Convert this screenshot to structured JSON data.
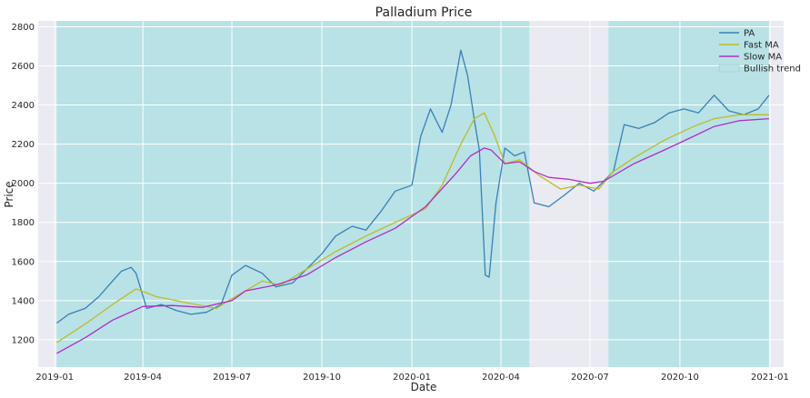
{
  "chart_data": {
    "type": "line",
    "title": "Palladium Price",
    "xlabel": "Date",
    "ylabel": "Price",
    "xlim": [
      "2018-12-15",
      "2021-01-15"
    ],
    "ylim": [
      1060,
      2830
    ],
    "x_ticks": [
      "2019-01-01",
      "2019-04-01",
      "2019-07-01",
      "2019-10-01",
      "2020-01-01",
      "2020-04-01",
      "2020-07-01",
      "2020-10-01",
      "2021-01-01"
    ],
    "x_tick_labels": [
      "2019-01",
      "2019-04",
      "2019-07",
      "2019-10",
      "2020-01",
      "2020-04",
      "2020-07",
      "2020-10",
      "2021-01"
    ],
    "y_ticks": [
      1200,
      1400,
      1600,
      1800,
      2000,
      2200,
      2400,
      2600,
      2800
    ],
    "y_tick_labels": [
      "1200",
      "1400",
      "1600",
      "1800",
      "2000",
      "2200",
      "2400",
      "2600",
      "2800"
    ],
    "grid": true,
    "legend_position": "top-right",
    "legend": [
      "PA",
      "Fast MA",
      "Slow MA",
      "Bullish trend"
    ],
    "colors": {
      "plot_bg": "#eaeaf2",
      "grid": "#ffffff",
      "pa": "#3a7fb6",
      "fast_ma": "#bcbd22",
      "slow_ma": "#b22cc9",
      "bullish": "#b8e2e6"
    },
    "bullish_periods": [
      {
        "start": "2019-01-03",
        "end": "2020-04-30"
      },
      {
        "start": "2020-07-20",
        "end": "2020-12-31"
      }
    ],
    "series": [
      {
        "name": "PA",
        "x": [
          "2019-01-03",
          "2019-01-15",
          "2019-02-01",
          "2019-02-15",
          "2019-03-01",
          "2019-03-10",
          "2019-03-20",
          "2019-03-25",
          "2019-04-05",
          "2019-04-20",
          "2019-05-05",
          "2019-05-20",
          "2019-06-05",
          "2019-06-20",
          "2019-07-01",
          "2019-07-15",
          "2019-08-01",
          "2019-08-15",
          "2019-09-01",
          "2019-09-15",
          "2019-10-01",
          "2019-10-15",
          "2019-11-01",
          "2019-11-15",
          "2019-12-01",
          "2019-12-15",
          "2020-01-01",
          "2020-01-10",
          "2020-01-20",
          "2020-02-01",
          "2020-02-10",
          "2020-02-20",
          "2020-02-27",
          "2020-03-05",
          "2020-03-10",
          "2020-03-16",
          "2020-03-20",
          "2020-03-27",
          "2020-04-05",
          "2020-04-15",
          "2020-04-25",
          "2020-05-05",
          "2020-05-20",
          "2020-06-05",
          "2020-06-20",
          "2020-07-05",
          "2020-07-15",
          "2020-07-25",
          "2020-08-05",
          "2020-08-20",
          "2020-09-05",
          "2020-09-20",
          "2020-10-05",
          "2020-10-20",
          "2020-11-05",
          "2020-11-20",
          "2020-12-05",
          "2020-12-20",
          "2020-12-31"
        ],
        "values": [
          1285,
          1330,
          1360,
          1420,
          1500,
          1550,
          1570,
          1540,
          1360,
          1380,
          1350,
          1330,
          1340,
          1380,
          1530,
          1580,
          1540,
          1470,
          1490,
          1560,
          1640,
          1730,
          1780,
          1760,
          1860,
          1960,
          1990,
          2240,
          2380,
          2260,
          2400,
          2680,
          2550,
          2320,
          2170,
          1530,
          1520,
          1900,
          2180,
          2140,
          2160,
          1900,
          1880,
          1940,
          2000,
          1960,
          2010,
          2060,
          2300,
          2280,
          2310,
          2360,
          2380,
          2360,
          2450,
          2370,
          2350,
          2380,
          2450
        ]
      },
      {
        "name": "Fast MA",
        "x": [
          "2019-01-03",
          "2019-02-01",
          "2019-03-01",
          "2019-03-25",
          "2019-04-15",
          "2019-05-15",
          "2019-06-15",
          "2019-07-01",
          "2019-08-01",
          "2019-08-20",
          "2019-09-15",
          "2019-10-15",
          "2019-11-15",
          "2019-12-15",
          "2020-01-15",
          "2020-02-01",
          "2020-02-20",
          "2020-03-05",
          "2020-03-15",
          "2020-03-25",
          "2020-04-05",
          "2020-04-20",
          "2020-05-10",
          "2020-06-01",
          "2020-06-20",
          "2020-07-10",
          "2020-07-25",
          "2020-08-15",
          "2020-09-15",
          "2020-10-15",
          "2020-11-05",
          "2020-12-01",
          "2020-12-31"
        ],
        "values": [
          1185,
          1280,
          1380,
          1460,
          1420,
          1390,
          1360,
          1410,
          1500,
          1480,
          1560,
          1650,
          1730,
          1800,
          1870,
          1990,
          2200,
          2330,
          2360,
          2250,
          2100,
          2120,
          2040,
          1970,
          1990,
          1970,
          2060,
          2130,
          2220,
          2290,
          2330,
          2350,
          2350
        ]
      },
      {
        "name": "Slow MA",
        "x": [
          "2019-01-03",
          "2019-02-01",
          "2019-03-01",
          "2019-04-01",
          "2019-05-01",
          "2019-06-01",
          "2019-07-01",
          "2019-07-15",
          "2019-08-15",
          "2019-09-15",
          "2019-10-15",
          "2019-11-15",
          "2019-12-15",
          "2020-01-15",
          "2020-02-15",
          "2020-03-01",
          "2020-03-15",
          "2020-03-22",
          "2020-04-05",
          "2020-04-20",
          "2020-05-05",
          "2020-05-20",
          "2020-06-10",
          "2020-07-01",
          "2020-07-15",
          "2020-08-15",
          "2020-09-15",
          "2020-10-15",
          "2020-11-05",
          "2020-12-01",
          "2020-12-31"
        ],
        "values": [
          1130,
          1210,
          1300,
          1370,
          1375,
          1365,
          1400,
          1450,
          1480,
          1530,
          1620,
          1700,
          1770,
          1880,
          2050,
          2140,
          2180,
          2170,
          2100,
          2110,
          2060,
          2030,
          2020,
          2000,
          2010,
          2100,
          2170,
          2240,
          2290,
          2320,
          2330
        ]
      }
    ]
  }
}
